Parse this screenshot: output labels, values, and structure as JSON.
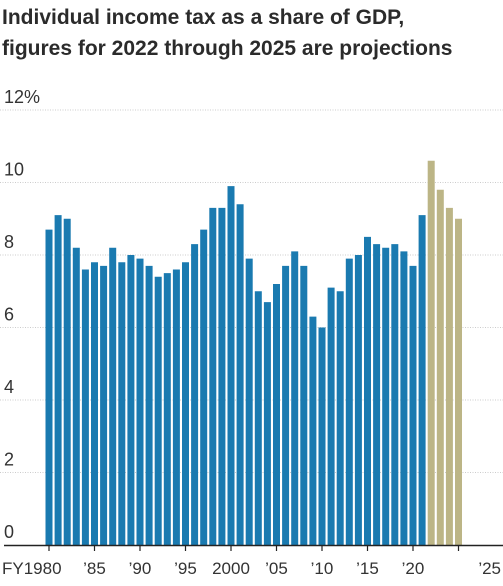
{
  "title_lines": [
    "Individual income tax as a share of GDP,",
    "figures for 2022 through 2025 are projections"
  ],
  "chart_data": {
    "type": "bar",
    "title": "Individual income tax as a share of GDP, figures for 2022 through 2025 are projections",
    "xlabel": "",
    "ylabel": "",
    "ylim": [
      0,
      12
    ],
    "y_ticks": [
      0,
      2,
      4,
      6,
      8,
      10,
      12
    ],
    "y_tick_labels": [
      "0",
      "2",
      "4",
      "6",
      "8",
      "10",
      "12%"
    ],
    "x_tick_labels": [
      {
        "year": 1980,
        "label": "FY1980"
      },
      {
        "year": 1985,
        "label": "’85"
      },
      {
        "year": 1990,
        "label": "’90"
      },
      {
        "year": 1995,
        "label": "’95"
      },
      {
        "year": 2000,
        "label": "2000"
      },
      {
        "year": 2005,
        "label": "’05"
      },
      {
        "year": 2010,
        "label": "’10"
      },
      {
        "year": 2015,
        "label": "’15"
      },
      {
        "year": 2020,
        "label": "’20"
      },
      {
        "year": 2025,
        "label": "’25"
      }
    ],
    "grid": "horizontal",
    "colors": {
      "actual": "#1a7ab0",
      "projection": "#bcb586",
      "grid": "#cccccc",
      "axis": "#222222"
    },
    "years": [
      1980,
      1981,
      1982,
      1983,
      1984,
      1985,
      1986,
      1987,
      1988,
      1989,
      1990,
      1991,
      1992,
      1993,
      1994,
      1995,
      1996,
      1997,
      1998,
      1999,
      2000,
      2001,
      2002,
      2003,
      2004,
      2005,
      2006,
      2007,
      2008,
      2009,
      2010,
      2011,
      2012,
      2013,
      2014,
      2015,
      2016,
      2017,
      2018,
      2019,
      2020,
      2021,
      2022,
      2023,
      2024,
      2025
    ],
    "series": [
      {
        "values": [
          8.7,
          9.1,
          9.0,
          8.2,
          7.6,
          7.8,
          7.7,
          8.2,
          7.8,
          8.0,
          7.9,
          7.7,
          7.4,
          7.5,
          7.6,
          7.8,
          8.3,
          8.7,
          9.3,
          9.3,
          9.9,
          9.4,
          7.9,
          7.0,
          6.7,
          7.2,
          7.7,
          8.1,
          7.7,
          6.3,
          6.0,
          7.1,
          7.0,
          7.9,
          8.0,
          8.5,
          8.3,
          8.2,
          8.3,
          8.1,
          7.7,
          9.1,
          null,
          null,
          null,
          null
        ]
      },
      {
        "values": [
          null,
          null,
          null,
          null,
          null,
          null,
          null,
          null,
          null,
          null,
          null,
          null,
          null,
          null,
          null,
          null,
          null,
          null,
          null,
          null,
          null,
          null,
          null,
          null,
          null,
          null,
          null,
          null,
          null,
          null,
          null,
          null,
          null,
          null,
          null,
          null,
          null,
          null,
          null,
          null,
          null,
          null,
          10.6,
          9.8,
          9.3,
          9.0
        ]
      }
    ]
  }
}
